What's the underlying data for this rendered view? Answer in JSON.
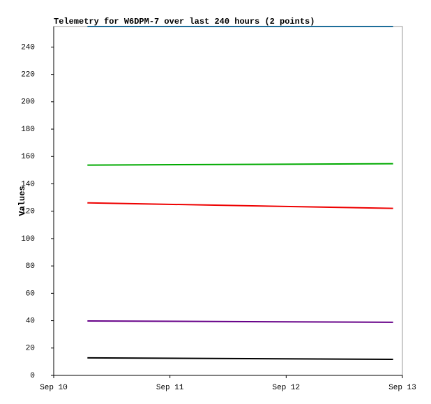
{
  "chart_data": {
    "type": "line",
    "title": "Telemetry for W6DPM-7 over last 240 hours (2 points)",
    "y_label": "Values",
    "x": [
      10.29,
      12.92
    ],
    "xlim": [
      10,
      13
    ],
    "xticks": [
      {
        "value": 10,
        "label": "Sep 10"
      },
      {
        "value": 11,
        "label": "Sep 11"
      },
      {
        "value": 12,
        "label": "Sep 12"
      },
      {
        "value": 13,
        "label": "Sep 13"
      }
    ],
    "ylim": [
      0,
      255
    ],
    "yticks": [
      0,
      20,
      40,
      60,
      80,
      100,
      120,
      140,
      160,
      180,
      200,
      220,
      240
    ],
    "series": [
      {
        "color": "#1e6e9a",
        "values": [
          255,
          255
        ]
      },
      {
        "color": "#00aa00",
        "values": [
          153.7,
          154.7
        ]
      },
      {
        "color": "#ee0000",
        "values": [
          126.1,
          122.1
        ]
      },
      {
        "color": "#660088",
        "values": [
          39.8,
          38.8
        ]
      },
      {
        "color": "#000000",
        "values": [
          12.8,
          11.7
        ]
      }
    ]
  }
}
